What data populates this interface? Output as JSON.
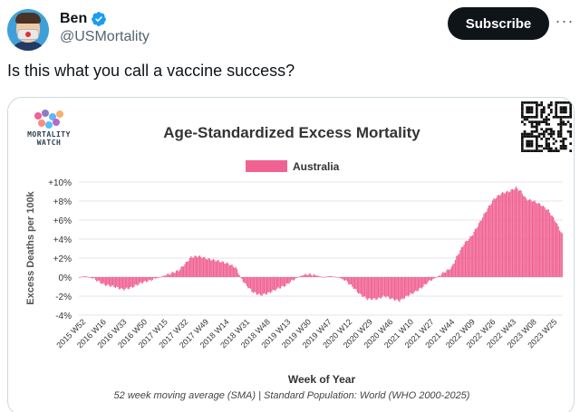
{
  "post": {
    "display_name": "Ben",
    "handle": "@USMortality",
    "subscribe_label": "Subscribe",
    "more_label": "···",
    "text": "Is this what you call a vaccine success?"
  },
  "card": {
    "logo_text_line1": "MORTALITY",
    "logo_text_line2": "WATCH"
  },
  "colors": {
    "accent": "#f06292",
    "verified": "#1d9bf0",
    "button_bg": "#0f1419"
  },
  "chart_data": {
    "type": "bar",
    "title": "Age-Standardized Excess Mortality",
    "legend": "Australia",
    "legend_position": "top-center",
    "xlabel": "Week of Year",
    "ylabel": "Excess Deaths per 100k",
    "footnote": "52 week moving average (SMA) | Standard Population: World (WHO 2000-2025)",
    "ylim": [
      -4,
      10
    ],
    "yticks": [
      "+10%",
      "+8%",
      "+6%",
      "+4%",
      "+2%",
      "0%",
      "-2%",
      "-4%"
    ],
    "ytick_values": [
      10,
      8,
      6,
      4,
      2,
      0,
      -2,
      -4
    ],
    "grid": true,
    "xticks": [
      "2015 W52",
      "2016 W16",
      "2016 W33",
      "2016 W50",
      "2017 W15",
      "2017 W32",
      "2017 W49",
      "2018 W14",
      "2018 W31",
      "2018 W48",
      "2019 W13",
      "2019 W30",
      "2019 W47",
      "2020 W12",
      "2020 W29",
      "2020 W46",
      "2021 W10",
      "2021 W27",
      "2021 W44",
      "2022 W09",
      "2022 W26",
      "2022 W43",
      "2023 W08",
      "2023 W25"
    ],
    "series": [
      {
        "name": "Australia",
        "color": "#f06292",
        "anchors": [
          [
            0,
            0.0
          ],
          [
            5,
            0.1
          ],
          [
            12,
            -0.2
          ],
          [
            20,
            -0.8
          ],
          [
            28,
            -1.0
          ],
          [
            35,
            -1.3
          ],
          [
            42,
            -1.1
          ],
          [
            50,
            -0.6
          ],
          [
            58,
            -0.3
          ],
          [
            65,
            0.0
          ],
          [
            72,
            0.3
          ],
          [
            80,
            0.7
          ],
          [
            86,
            1.5
          ],
          [
            90,
            2.1
          ],
          [
            96,
            2.2
          ],
          [
            104,
            1.9
          ],
          [
            112,
            1.7
          ],
          [
            120,
            1.4
          ],
          [
            126,
            1.0
          ],
          [
            130,
            0.0
          ],
          [
            134,
            -0.8
          ],
          [
            140,
            -1.6
          ],
          [
            146,
            -1.9
          ],
          [
            152,
            -1.7
          ],
          [
            160,
            -1.2
          ],
          [
            166,
            -0.9
          ],
          [
            172,
            -0.3
          ],
          [
            178,
            0.1
          ],
          [
            184,
            0.3
          ],
          [
            190,
            0.2
          ],
          [
            196,
            0.0
          ],
          [
            202,
            0.1
          ],
          [
            208,
            0.0
          ],
          [
            214,
            -0.3
          ],
          [
            220,
            -1.0
          ],
          [
            226,
            -1.8
          ],
          [
            232,
            -2.3
          ],
          [
            240,
            -2.3
          ],
          [
            246,
            -2.0
          ],
          [
            252,
            -2.3
          ],
          [
            258,
            -2.5
          ],
          [
            264,
            -2.0
          ],
          [
            270,
            -1.6
          ],
          [
            276,
            -1.1
          ],
          [
            282,
            -0.4
          ],
          [
            288,
            0.0
          ],
          [
            294,
            0.5
          ],
          [
            300,
            1.0
          ],
          [
            304,
            2.1
          ],
          [
            310,
            3.5
          ],
          [
            316,
            4.3
          ],
          [
            322,
            5.6
          ],
          [
            328,
            7.0
          ],
          [
            334,
            8.2
          ],
          [
            340,
            8.8
          ],
          [
            346,
            9.0
          ],
          [
            352,
            9.4
          ],
          [
            356,
            9.0
          ],
          [
            360,
            8.2
          ],
          [
            366,
            8.0
          ],
          [
            372,
            7.6
          ],
          [
            378,
            7.0
          ],
          [
            384,
            5.8
          ],
          [
            389,
            4.5
          ]
        ]
      }
    ]
  }
}
